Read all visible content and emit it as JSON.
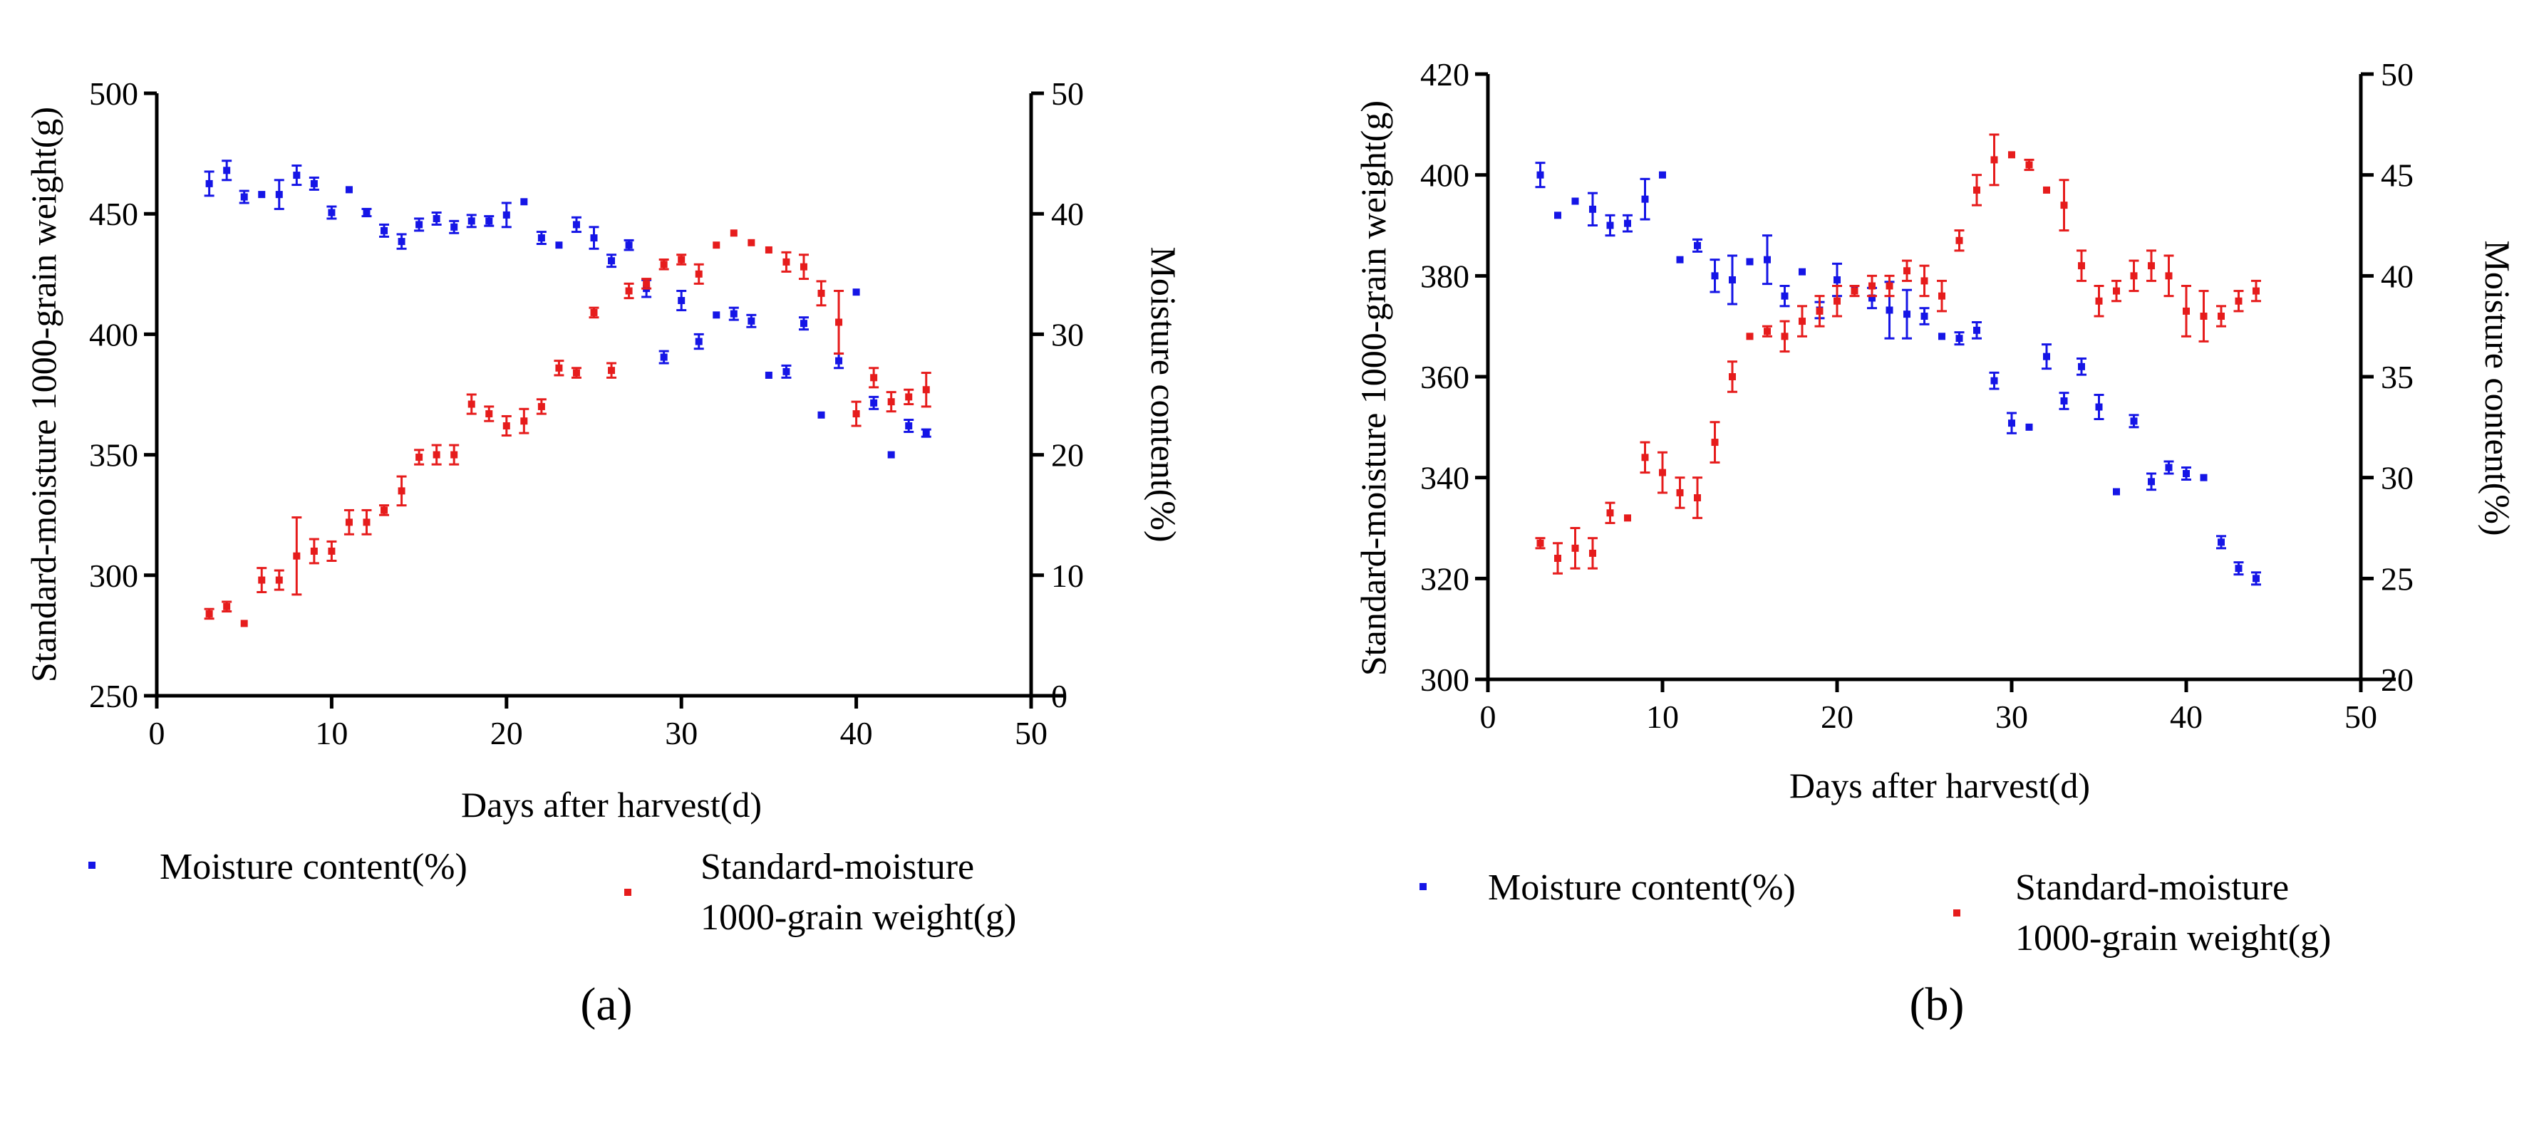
{
  "colors": {
    "moisture": "#1515e6",
    "weight": "#e61c1c",
    "axis": "#000000"
  },
  "chart_data": [
    {
      "type": "scatter",
      "panel_label": "(a)",
      "xlabel": "Days after harvest(d)",
      "ylabel_left": "Standard-moisture 1000-grain weight(g)",
      "ylabel_right": "Moisture content(%)",
      "xlim": [
        0,
        50
      ],
      "xticks": [
        0,
        10,
        20,
        30,
        40,
        50
      ],
      "ylim_left": [
        250,
        500
      ],
      "yticks_left": [
        250,
        300,
        350,
        400,
        450,
        500
      ],
      "ylim_right": [
        0,
        50
      ],
      "yticks_right": [
        0,
        10,
        20,
        30,
        40,
        50
      ],
      "legend": [
        "Moisture content(%)",
        "Standard-moisture",
        "1000-grain weight(g)"
      ],
      "series": [
        {
          "name": "Moisture content(%)",
          "axis": "right",
          "color_key": "moisture",
          "points": [
            [
              3,
              42.5,
              1
            ],
            [
              4,
              43.6,
              0.8
            ],
            [
              5,
              41.4,
              0.5
            ],
            [
              6,
              41.6,
              0
            ],
            [
              7,
              41.6,
              1.2
            ],
            [
              8,
              43.2,
              0.8
            ],
            [
              9,
              42.5,
              0.5
            ],
            [
              10,
              40.1,
              0.5
            ],
            [
              11,
              42,
              0
            ],
            [
              12,
              40.1,
              0.3
            ],
            [
              13,
              38.6,
              0.5
            ],
            [
              14,
              37.7,
              0.6
            ],
            [
              15,
              39.1,
              0.5
            ],
            [
              16,
              39.6,
              0.5
            ],
            [
              17,
              38.9,
              0.5
            ],
            [
              18,
              39.4,
              0.5
            ],
            [
              19,
              39.4,
              0.4
            ],
            [
              20,
              39.9,
              1
            ],
            [
              21,
              41,
              0
            ],
            [
              22,
              38,
              0.5
            ],
            [
              23,
              37.4,
              0
            ],
            [
              24,
              39.1,
              0.6
            ],
            [
              25,
              38,
              0.9
            ],
            [
              26,
              36.1,
              0.5
            ],
            [
              27,
              37.4,
              0.4
            ],
            [
              28,
              33.8,
              0.7
            ],
            [
              29,
              28.1,
              0.5
            ],
            [
              30,
              32.8,
              0.8
            ],
            [
              31,
              29.4,
              0.6
            ],
            [
              32,
              31.6,
              0
            ],
            [
              33,
              31.7,
              0.5
            ],
            [
              34,
              31.1,
              0.5
            ],
            [
              35,
              26.6,
              0
            ],
            [
              36,
              26.9,
              0.5
            ],
            [
              37,
              30.9,
              0.5
            ],
            [
              38,
              23.3,
              0
            ],
            [
              39,
              27.8,
              0.6
            ],
            [
              40,
              33.5,
              0
            ],
            [
              41,
              24.3,
              0.5
            ],
            [
              42,
              20,
              0
            ],
            [
              43,
              22.4,
              0.5
            ],
            [
              44,
              21.8,
              0.3
            ]
          ]
        },
        {
          "name": "Standard-moisture 1000-grain weight(g)",
          "axis": "left",
          "color_key": "weight",
          "points": [
            [
              3,
              284,
              2
            ],
            [
              4,
              287,
              2
            ],
            [
              5,
              280,
              0
            ],
            [
              6,
              298,
              5
            ],
            [
              7,
              298,
              4
            ],
            [
              8,
              308,
              16
            ],
            [
              9,
              310,
              5
            ],
            [
              10,
              310,
              4
            ],
            [
              11,
              322,
              5
            ],
            [
              12,
              322,
              5
            ],
            [
              13,
              327,
              2
            ],
            [
              14,
              335,
              6
            ],
            [
              15,
              349,
              3
            ],
            [
              16,
              350,
              4
            ],
            [
              17,
              350,
              4
            ],
            [
              18,
              371,
              4
            ],
            [
              19,
              367,
              3
            ],
            [
              20,
              362,
              4
            ],
            [
              21,
              364,
              5
            ],
            [
              22,
              370,
              3
            ],
            [
              23,
              386,
              3
            ],
            [
              24,
              384,
              2
            ],
            [
              25,
              409,
              2
            ],
            [
              26,
              385,
              3
            ],
            [
              27,
              418,
              3
            ],
            [
              28,
              421,
              2
            ],
            [
              29,
              429,
              2
            ],
            [
              30,
              431,
              2
            ],
            [
              31,
              425,
              4
            ],
            [
              32,
              437,
              0
            ],
            [
              33,
              442,
              0
            ],
            [
              34,
              438,
              0
            ],
            [
              35,
              435,
              0
            ],
            [
              36,
              430,
              4
            ],
            [
              37,
              428,
              5
            ],
            [
              38,
              417,
              5
            ],
            [
              39,
              405,
              13
            ],
            [
              40,
              367,
              5
            ],
            [
              41,
              382,
              4
            ],
            [
              42,
              372,
              4
            ],
            [
              43,
              374,
              3
            ],
            [
              44,
              377,
              7
            ]
          ]
        }
      ]
    },
    {
      "type": "scatter",
      "panel_label": "(b)",
      "xlabel": "Days after harvest(d)",
      "ylabel_left": "Standard-moisture 1000-grain weight(g)",
      "ylabel_right": "Moisture content(%)",
      "xlim": [
        0,
        50
      ],
      "xticks": [
        0,
        10,
        20,
        30,
        40,
        50
      ],
      "ylim_left": [
        300,
        420
      ],
      "yticks_left": [
        300,
        320,
        340,
        360,
        380,
        400,
        420
      ],
      "ylim_right": [
        20,
        50
      ],
      "yticks_right": [
        20,
        25,
        30,
        35,
        40,
        45,
        50
      ],
      "legend": [
        "Moisture content(%)",
        "Standard-moisture",
        "1000-grain weight(g)"
      ],
      "series": [
        {
          "name": "Moisture content(%)",
          "axis": "right",
          "color_key": "moisture",
          "points": [
            [
              3,
              45,
              0.6
            ],
            [
              4,
              43,
              0
            ],
            [
              5,
              43.7,
              0
            ],
            [
              6,
              43.3,
              0.8
            ],
            [
              7,
              42.5,
              0.5
            ],
            [
              8,
              42.6,
              0.4
            ],
            [
              9,
              43.8,
              1
            ],
            [
              10,
              45,
              0
            ],
            [
              11,
              40.8,
              0
            ],
            [
              12,
              41.5,
              0.3
            ],
            [
              13,
              40,
              0.8
            ],
            [
              14,
              39.8,
              1.2
            ],
            [
              15,
              40.7,
              0
            ],
            [
              16,
              40.8,
              1.2
            ],
            [
              17,
              39,
              0.5
            ],
            [
              18,
              40.2,
              0
            ],
            [
              19,
              38.3,
              0.4
            ],
            [
              20,
              39.8,
              0.8
            ],
            [
              21,
              39.3,
              0
            ],
            [
              22,
              38.9,
              0.5
            ],
            [
              23,
              38.3,
              1.4
            ],
            [
              24,
              38.1,
              1.2
            ],
            [
              25,
              38,
              0.4
            ],
            [
              26,
              37,
              0
            ],
            [
              27,
              36.9,
              0.3
            ],
            [
              28,
              37.3,
              0.4
            ],
            [
              29,
              34.8,
              0.4
            ],
            [
              30,
              32.7,
              0.5
            ],
            [
              31,
              32.5,
              0
            ],
            [
              32,
              36,
              0.6
            ],
            [
              33,
              33.8,
              0.4
            ],
            [
              34,
              35.5,
              0.4
            ],
            [
              35,
              33.5,
              0.6
            ],
            [
              36,
              29.3,
              0
            ],
            [
              37,
              32.8,
              0.3
            ],
            [
              38,
              29.8,
              0.4
            ],
            [
              39,
              30.5,
              0.3
            ],
            [
              40,
              30.2,
              0.3
            ],
            [
              41,
              30,
              0
            ],
            [
              42,
              26.8,
              0.3
            ],
            [
              43,
              25.5,
              0.3
            ],
            [
              44,
              25,
              0.3
            ]
          ]
        },
        {
          "name": "Standard-moisture 1000-grain weight(g)",
          "axis": "left",
          "color_key": "weight",
          "points": [
            [
              3,
              327,
              1
            ],
            [
              4,
              324,
              3
            ],
            [
              5,
              326,
              4
            ],
            [
              6,
              325,
              3
            ],
            [
              7,
              333,
              2
            ],
            [
              8,
              332,
              0
            ],
            [
              9,
              344,
              3
            ],
            [
              10,
              341,
              4
            ],
            [
              11,
              337,
              3
            ],
            [
              12,
              336,
              4
            ],
            [
              13,
              347,
              4
            ],
            [
              14,
              360,
              3
            ],
            [
              15,
              368,
              0
            ],
            [
              16,
              369,
              1
            ],
            [
              17,
              368,
              3
            ],
            [
              18,
              371,
              3
            ],
            [
              19,
              373,
              3
            ],
            [
              20,
              375,
              3
            ],
            [
              21,
              377,
              1
            ],
            [
              22,
              378,
              2
            ],
            [
              23,
              378,
              2
            ],
            [
              24,
              381,
              2
            ],
            [
              25,
              379,
              3
            ],
            [
              26,
              376,
              3
            ],
            [
              27,
              387,
              2
            ],
            [
              28,
              397,
              3
            ],
            [
              29,
              403,
              5
            ],
            [
              30,
              404,
              0
            ],
            [
              31,
              402,
              1
            ],
            [
              32,
              397,
              0
            ],
            [
              33,
              394,
              5
            ],
            [
              34,
              382,
              3
            ],
            [
              35,
              375,
              3
            ],
            [
              36,
              377,
              2
            ],
            [
              37,
              380,
              3
            ],
            [
              38,
              382,
              3
            ],
            [
              39,
              380,
              4
            ],
            [
              40,
              373,
              5
            ],
            [
              41,
              372,
              5
            ],
            [
              42,
              372,
              2
            ],
            [
              43,
              375,
              2
            ],
            [
              44,
              377,
              2
            ]
          ]
        }
      ]
    }
  ]
}
